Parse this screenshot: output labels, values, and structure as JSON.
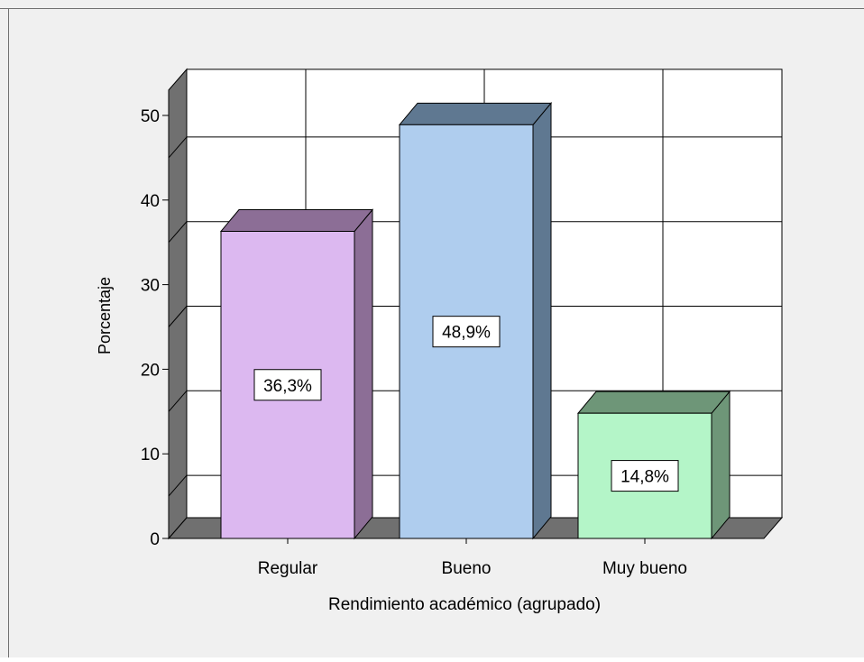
{
  "chart_data": {
    "type": "bar",
    "style": "3d",
    "categories": [
      "Regular",
      "Bueno",
      "Muy bueno"
    ],
    "values": [
      36.3,
      48.9,
      14.8
    ],
    "data_labels": [
      "36,3%",
      "48,9%",
      "14,8%"
    ],
    "title": "",
    "xlabel": "Rendimiento académico (agrupado)",
    "ylabel": "Porcentaje",
    "ylim": [
      0,
      53
    ],
    "yticks": [
      0,
      10,
      20,
      30,
      40,
      50
    ],
    "grid": true,
    "legend": "none",
    "colors": {
      "bars": [
        "#dcb8f0",
        "#afcdee",
        "#b4f5c8"
      ],
      "bar_sides": [
        "#8c6e96",
        "#5f7891",
        "#6e9678"
      ],
      "bar_tops": [
        "#8c6e96",
        "#5f7891",
        "#6e9678"
      ],
      "background": "#f0f0f0",
      "plot_back": "#ffffff",
      "floor": "#707070",
      "side_wall": "#707070",
      "gridline": "#000000"
    }
  }
}
